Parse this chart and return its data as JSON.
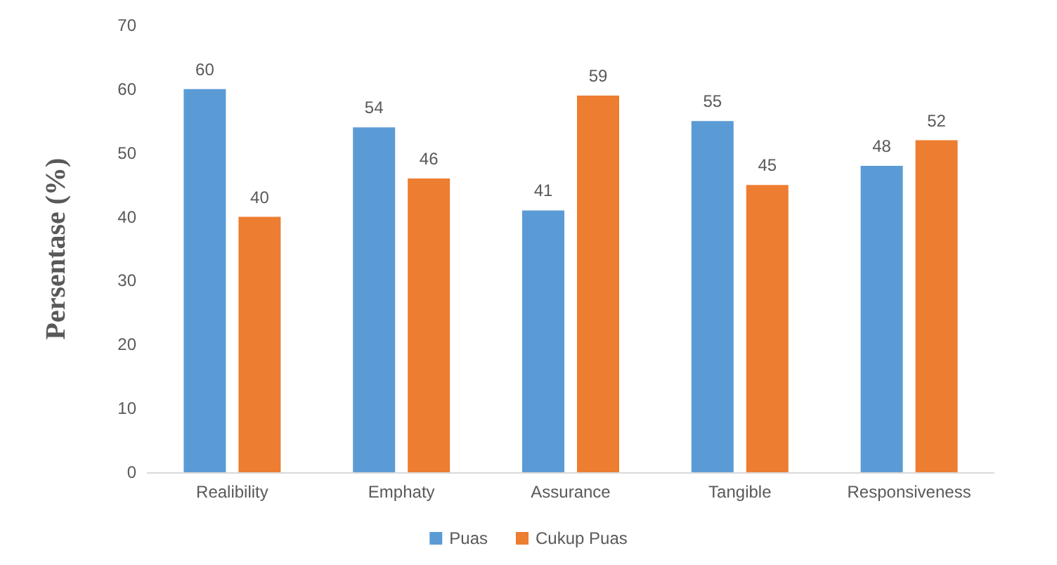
{
  "chart_data": {
    "type": "bar",
    "ylabel": "Persentase (%)",
    "categories": [
      "Realibility",
      "Emphaty",
      "Assurance",
      "Tangible",
      "Responsiveness"
    ],
    "series": [
      {
        "name": "Puas",
        "color": "#5b9bd5",
        "values": [
          60,
          54,
          41,
          55,
          48
        ]
      },
      {
        "name": "Cukup Puas",
        "color": "#ed7d31",
        "values": [
          40,
          46,
          59,
          45,
          52
        ]
      }
    ],
    "ylim": [
      0,
      70
    ],
    "yticks": [
      0,
      10,
      20,
      30,
      40,
      50,
      60,
      70
    ],
    "grid": false,
    "legend": "bottom",
    "data_labels": true
  }
}
